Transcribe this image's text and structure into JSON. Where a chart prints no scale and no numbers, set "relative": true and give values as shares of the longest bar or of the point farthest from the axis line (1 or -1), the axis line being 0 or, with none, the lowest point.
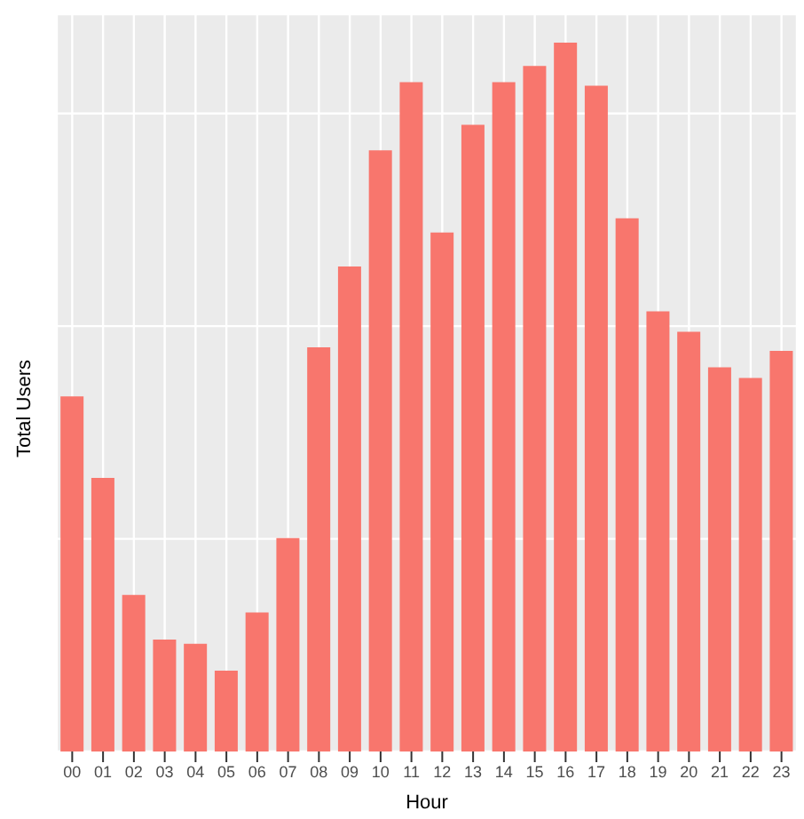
{
  "chart_data": {
    "type": "bar",
    "relative": true,
    "xlabel": "Hour",
    "ylabel": "Total Users",
    "categories": [
      "00",
      "01",
      "02",
      "03",
      "04",
      "05",
      "06",
      "07",
      "08",
      "09",
      "10",
      "11",
      "12",
      "13",
      "14",
      "15",
      "16",
      "17",
      "18",
      "19",
      "20",
      "21",
      "22",
      "23"
    ],
    "values": [
      0.501,
      0.386,
      0.221,
      0.158,
      0.152,
      0.114,
      0.196,
      0.301,
      0.57,
      0.684,
      0.848,
      0.944,
      0.732,
      0.884,
      0.944,
      0.967,
      1,
      0.939,
      0.752,
      0.621,
      0.592,
      0.542,
      0.527,
      0.565
    ],
    "color": "#f8766d",
    "grid": true
  }
}
